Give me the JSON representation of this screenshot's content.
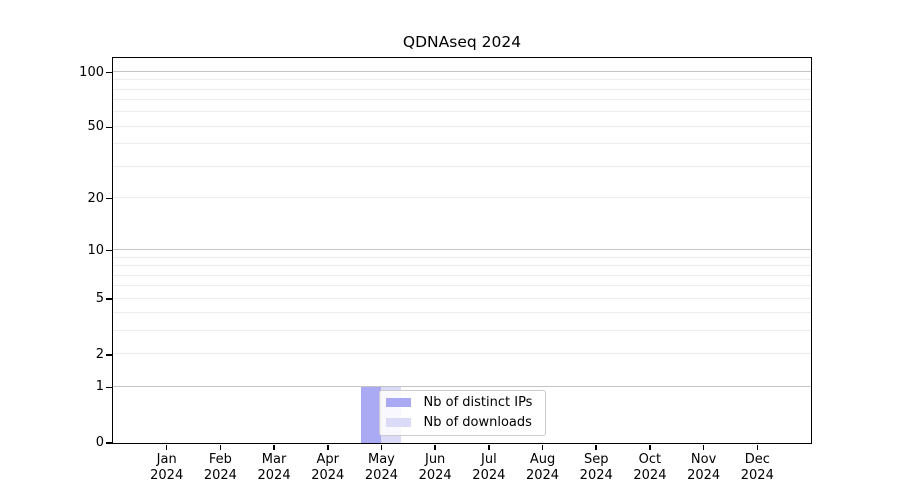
{
  "chart_data": {
    "type": "bar",
    "title": "QDNAseq 2024",
    "categories": [
      "Jan",
      "Feb",
      "Mar",
      "Apr",
      "May",
      "Jun",
      "Jul",
      "Aug",
      "Sep",
      "Oct",
      "Nov",
      "Dec"
    ],
    "category_year": "2024",
    "series": [
      {
        "name": "Nb of distinct IPs",
        "color": "#a9a9f4",
        "values": [
          0,
          0,
          0,
          0,
          1,
          0,
          0,
          0,
          0,
          0,
          0,
          0
        ]
      },
      {
        "name": "Nb of downloads",
        "color": "#dbdbf7",
        "values": [
          0,
          0,
          0,
          0,
          1,
          0,
          0,
          0,
          0,
          0,
          0,
          0
        ]
      }
    ],
    "yscale": "log1p",
    "ylim": [
      0,
      120
    ],
    "yticks": [
      0,
      1,
      2,
      5,
      10,
      20,
      50,
      100
    ],
    "grid": {
      "minor_values": [
        2,
        3,
        4,
        5,
        6,
        7,
        8,
        9,
        20,
        30,
        40,
        50,
        60,
        70,
        80,
        90
      ],
      "major_values": [
        1,
        10,
        100
      ],
      "minor_color": "#ececec",
      "major_color": "#c4c4c4"
    },
    "legend_position": "inside-bottom-center",
    "axis_color": "#000000",
    "background_color": "#ffffff"
  }
}
